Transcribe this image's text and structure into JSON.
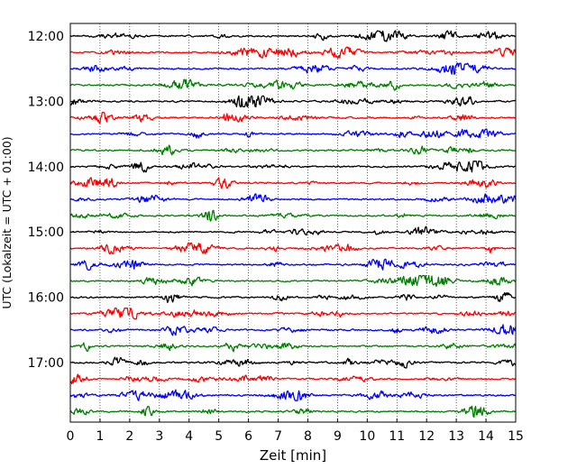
{
  "chart_data": {
    "type": "line",
    "xlabel": "Zeit  [min]",
    "ylabel": "UTC (Lokalzeit = UTC + 01:00)",
    "xlim": [
      0,
      15
    ],
    "x_ticks": [
      "0",
      "1",
      "2",
      "3",
      "4",
      "5",
      "6",
      "7",
      "8",
      "9",
      "10",
      "11",
      "12",
      "13",
      "14",
      "15"
    ],
    "y_ticks": [
      "12:00",
      "13:00",
      "14:00",
      "15:00",
      "16:00",
      "17:00"
    ],
    "grid": "x-dotted",
    "trace_interval_minutes": 15,
    "traces": [
      {
        "start": "12:00",
        "color": "#000000"
      },
      {
        "start": "12:15",
        "color": "#ff0000"
      },
      {
        "start": "12:30",
        "color": "#0000ff"
      },
      {
        "start": "12:45",
        "color": "#008000"
      },
      {
        "start": "13:00",
        "color": "#000000"
      },
      {
        "start": "13:15",
        "color": "#ff0000"
      },
      {
        "start": "13:30",
        "color": "#0000ff"
      },
      {
        "start": "13:45",
        "color": "#008000"
      },
      {
        "start": "14:00",
        "color": "#000000"
      },
      {
        "start": "14:15",
        "color": "#ff0000"
      },
      {
        "start": "14:30",
        "color": "#0000ff"
      },
      {
        "start": "14:45",
        "color": "#008000"
      },
      {
        "start": "15:00",
        "color": "#000000"
      },
      {
        "start": "15:15",
        "color": "#ff0000"
      },
      {
        "start": "15:30",
        "color": "#0000ff"
      },
      {
        "start": "15:45",
        "color": "#008000"
      },
      {
        "start": "16:00",
        "color": "#000000"
      },
      {
        "start": "16:15",
        "color": "#ff0000"
      },
      {
        "start": "16:30",
        "color": "#0000ff"
      },
      {
        "start": "16:45",
        "color": "#008000"
      },
      {
        "start": "17:00",
        "color": "#000000"
      },
      {
        "start": "17:15",
        "color": "#ff0000"
      },
      {
        "start": "17:30",
        "color": "#0000ff"
      },
      {
        "start": "17:45",
        "color": "#008000"
      }
    ]
  }
}
